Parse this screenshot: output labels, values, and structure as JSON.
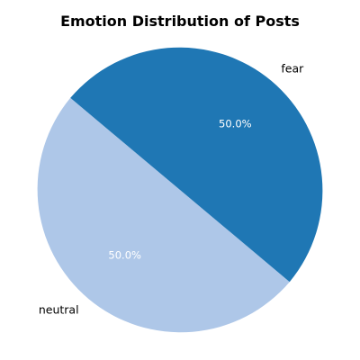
{
  "chart_data": {
    "type": "pie",
    "title": "Emotion Distribution of Posts",
    "categories": [
      "neutral",
      "fear"
    ],
    "values": [
      50.0,
      50.0
    ],
    "percent_labels": [
      "50.0%",
      "50.0%"
    ],
    "colors": [
      "#aec7e8",
      "#1f77b4"
    ],
    "start_angle_deg": 140,
    "legend": "none"
  }
}
